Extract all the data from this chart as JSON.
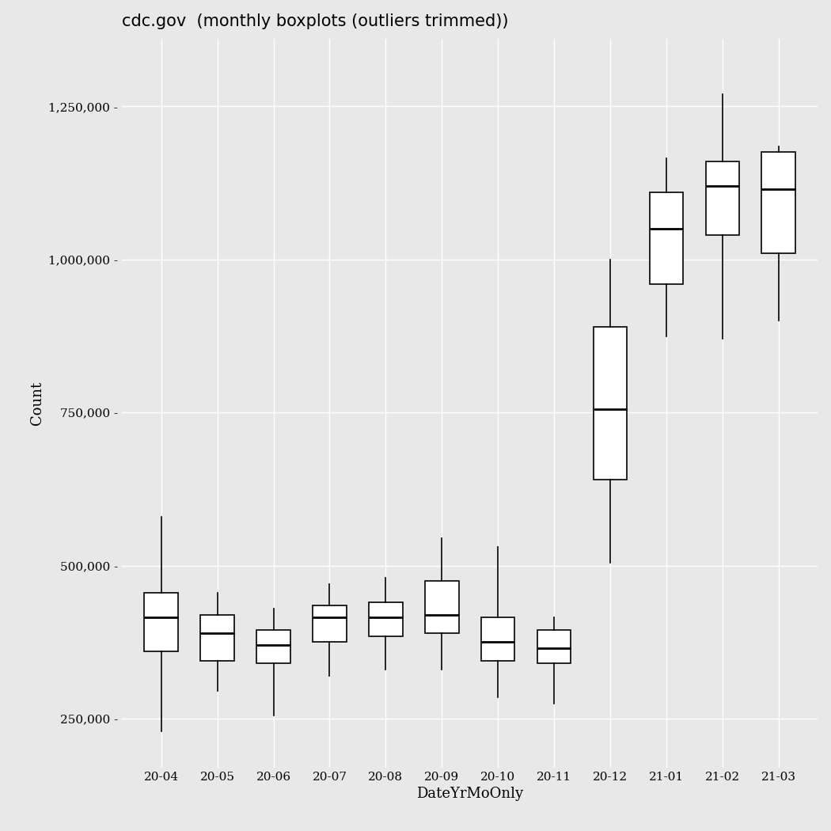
{
  "title": "cdc.gov  (monthly boxplots (outliers trimmed))",
  "xlabel": "DateYrMoOnly",
  "ylabel": "Count",
  "background_color": "#e8e8e8",
  "box_facecolor": "white",
  "box_edgecolor": "black",
  "grid_color": "white",
  "categories": [
    "20-04",
    "20-05",
    "20-06",
    "20-07",
    "20-08",
    "20-09",
    "20-10",
    "20-11",
    "20-12",
    "21-01",
    "21-02",
    "21-03"
  ],
  "box_stats": [
    {
      "whislo": 230000,
      "q1": 360000,
      "med": 415000,
      "q3": 455000,
      "whishi": 580000
    },
    {
      "whislo": 295000,
      "q1": 345000,
      "med": 390000,
      "q3": 420000,
      "whishi": 455000
    },
    {
      "whislo": 255000,
      "q1": 340000,
      "med": 370000,
      "q3": 395000,
      "whishi": 430000
    },
    {
      "whislo": 320000,
      "q1": 375000,
      "med": 415000,
      "q3": 435000,
      "whishi": 470000
    },
    {
      "whislo": 330000,
      "q1": 385000,
      "med": 415000,
      "q3": 440000,
      "whishi": 480000
    },
    {
      "whislo": 330000,
      "q1": 390000,
      "med": 420000,
      "q3": 475000,
      "whishi": 545000
    },
    {
      "whislo": 285000,
      "q1": 345000,
      "med": 375000,
      "q3": 415000,
      "whishi": 530000
    },
    {
      "whislo": 275000,
      "q1": 340000,
      "med": 365000,
      "q3": 395000,
      "whishi": 415000
    },
    {
      "whislo": 505000,
      "q1": 640000,
      "med": 755000,
      "q3": 890000,
      "whishi": 1000000
    },
    {
      "whislo": 875000,
      "q1": 960000,
      "med": 1050000,
      "q3": 1110000,
      "whishi": 1165000
    },
    {
      "whislo": 870000,
      "q1": 1040000,
      "med": 1120000,
      "q3": 1160000,
      "whishi": 1270000
    },
    {
      "whislo": 900000,
      "q1": 1010000,
      "med": 1115000,
      "q3": 1175000,
      "whishi": 1185000
    }
  ],
  "ylim": [
    170000,
    1360000
  ],
  "yticks": [
    250000,
    500000,
    750000,
    1000000,
    1250000
  ],
  "ytick_labels": [
    "250,000",
    "500,000",
    "750,000",
    "1,000,000",
    "1,250,000"
  ],
  "title_fontsize": 15,
  "axis_label_fontsize": 13,
  "tick_fontsize": 11,
  "box_width": 0.6,
  "linewidth": 1.2
}
